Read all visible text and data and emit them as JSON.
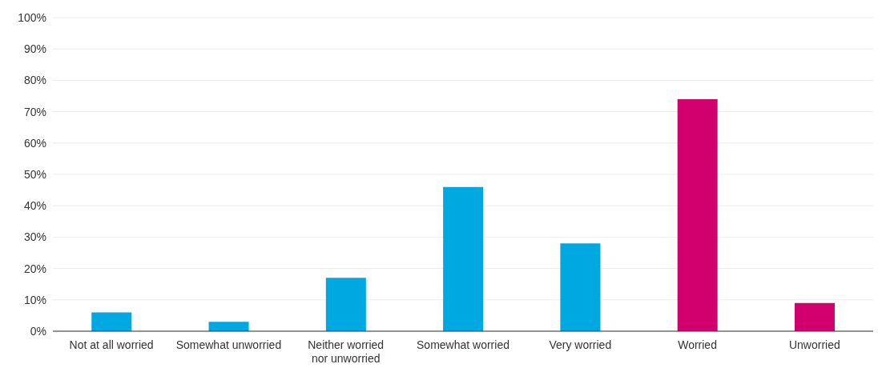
{
  "chart_data": {
    "type": "bar",
    "categories": [
      "Not at all worried",
      "Somewhat unworried",
      "Neither worried nor unworried",
      "Somewhat worried",
      "Very worried",
      "Worried",
      "Unworried"
    ],
    "values": [
      6,
      3,
      17,
      46,
      28,
      74,
      9
    ],
    "colors": [
      "#00a8e1",
      "#00a8e1",
      "#00a8e1",
      "#00a8e1",
      "#00a8e1",
      "#d1006e",
      "#d1006e"
    ],
    "ylim": [
      0,
      100
    ],
    "yticks": [
      {
        "value": 0,
        "label": "0%"
      },
      {
        "value": 10,
        "label": "10%"
      },
      {
        "value": 20,
        "label": "20%"
      },
      {
        "value": 30,
        "label": "30%"
      },
      {
        "value": 40,
        "label": "40%"
      },
      {
        "value": 50,
        "label": "50%"
      },
      {
        "value": 60,
        "label": "60%"
      },
      {
        "value": 70,
        "label": "70%"
      },
      {
        "value": 80,
        "label": "80%"
      },
      {
        "value": 90,
        "label": "90%"
      },
      {
        "value": 100,
        "label": "100%"
      }
    ],
    "grid": "y"
  }
}
